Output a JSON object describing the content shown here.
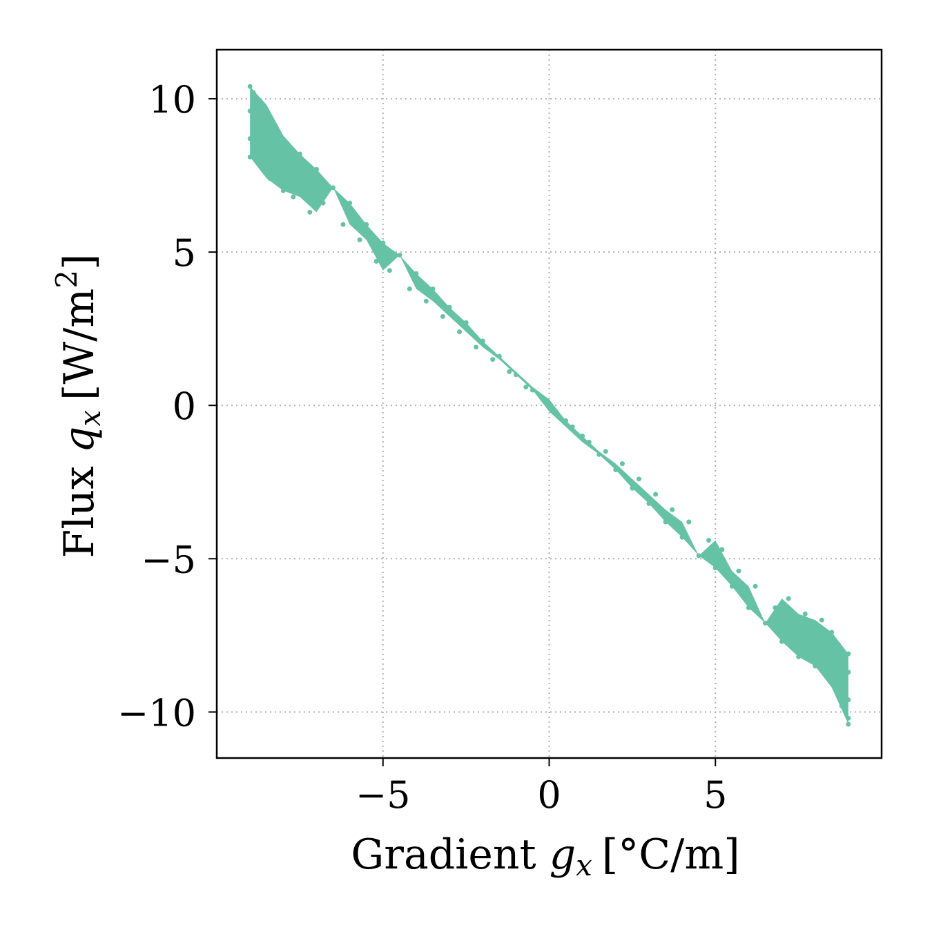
{
  "chart_data": {
    "type": "scatter",
    "xlabel": {
      "prefix": "Gradient ",
      "var": "g",
      "sub": "x",
      "unit": "[°C/m]"
    },
    "ylabel": {
      "prefix": "Flux ",
      "var": "q",
      "sub": "x",
      "unit_pre": "[W/m",
      "unit_sup": "2",
      "unit_post": "]"
    },
    "xlim": [
      -10,
      10
    ],
    "ylim": [
      -11.5,
      11.6
    ],
    "xticks": [
      -5,
      0,
      5
    ],
    "xtick_labels": [
      "−5",
      "0",
      "5"
    ],
    "yticks": [
      -10,
      -5,
      0,
      5,
      10
    ],
    "ytick_labels": [
      "−10",
      "−5",
      "0",
      "5",
      "10"
    ],
    "grid": true,
    "marker_color": "#66c2a5",
    "series": [
      {
        "points": [
          [
            -9.0,
            10.4
          ],
          [
            -9.0,
            9.6
          ],
          [
            -9.0,
            8.7
          ],
          [
            -9.0,
            8.1
          ],
          [
            -8.9,
            10.2
          ],
          [
            -8.9,
            9.1
          ],
          [
            -8.8,
            8.4
          ],
          [
            -8.7,
            9.8
          ],
          [
            -8.6,
            7.8
          ],
          [
            -8.5,
            9.2
          ],
          [
            -8.4,
            7.4
          ],
          [
            -8.2,
            8.8
          ],
          [
            -8.0,
            7.0
          ],
          [
            -7.9,
            8.5
          ],
          [
            -7.7,
            6.8
          ],
          [
            -7.5,
            8.2
          ],
          [
            -7.2,
            6.3
          ],
          [
            -7.0,
            7.7
          ],
          [
            -6.8,
            6.6
          ],
          [
            -6.5,
            7.1
          ],
          [
            -6.2,
            5.9
          ],
          [
            -6.0,
            6.6
          ],
          [
            -5.7,
            5.4
          ],
          [
            -5.5,
            5.9
          ],
          [
            -5.2,
            4.7
          ],
          [
            -5.0,
            5.3
          ],
          [
            -4.8,
            4.4
          ],
          [
            -4.5,
            4.9
          ],
          [
            -4.2,
            3.8
          ],
          [
            -4.0,
            4.3
          ],
          [
            -3.7,
            3.4
          ],
          [
            -3.5,
            3.8
          ],
          [
            -3.2,
            2.9
          ],
          [
            -3.0,
            3.2
          ],
          [
            -2.7,
            2.4
          ],
          [
            -2.5,
            2.7
          ],
          [
            -2.2,
            1.9
          ],
          [
            -2.0,
            2.1
          ],
          [
            -1.7,
            1.5
          ],
          [
            -1.5,
            1.6
          ],
          [
            -1.2,
            1.1
          ],
          [
            -1.0,
            1.0
          ],
          [
            -0.7,
            0.6
          ],
          [
            -0.5,
            0.5
          ],
          [
            -0.2,
            0.2
          ],
          [
            0.0,
            0.0
          ],
          [
            0.2,
            -0.2
          ],
          [
            0.5,
            -0.5
          ],
          [
            0.7,
            -0.7
          ],
          [
            1.0,
            -1.0
          ],
          [
            1.2,
            -1.2
          ],
          [
            1.5,
            -1.6
          ],
          [
            1.7,
            -1.5
          ],
          [
            2.0,
            -2.1
          ],
          [
            2.2,
            -1.9
          ],
          [
            2.5,
            -2.7
          ],
          [
            2.7,
            -2.4
          ],
          [
            3.0,
            -3.2
          ],
          [
            3.2,
            -2.9
          ],
          [
            3.5,
            -3.8
          ],
          [
            3.7,
            -3.4
          ],
          [
            4.0,
            -4.3
          ],
          [
            4.2,
            -3.8
          ],
          [
            4.5,
            -4.9
          ],
          [
            4.8,
            -4.4
          ],
          [
            5.0,
            -5.3
          ],
          [
            5.2,
            -4.7
          ],
          [
            5.5,
            -5.9
          ],
          [
            5.7,
            -5.4
          ],
          [
            6.0,
            -6.6
          ],
          [
            6.2,
            -5.9
          ],
          [
            6.5,
            -7.1
          ],
          [
            6.8,
            -6.6
          ],
          [
            7.0,
            -7.7
          ],
          [
            7.2,
            -6.3
          ],
          [
            7.5,
            -8.2
          ],
          [
            7.7,
            -6.8
          ],
          [
            8.0,
            -8.5
          ],
          [
            8.2,
            -7.0
          ],
          [
            8.4,
            -8.8
          ],
          [
            8.5,
            -7.4
          ],
          [
            8.6,
            -9.2
          ],
          [
            8.7,
            -7.8
          ],
          [
            8.8,
            -9.8
          ],
          [
            8.9,
            -8.4
          ],
          [
            8.9,
            -9.1
          ],
          [
            9.0,
            -10.4
          ],
          [
            9.0,
            -9.6
          ],
          [
            9.0,
            -8.7
          ],
          [
            9.0,
            -8.1
          ],
          [
            9.0,
            -10.2
          ]
        ]
      }
    ]
  }
}
